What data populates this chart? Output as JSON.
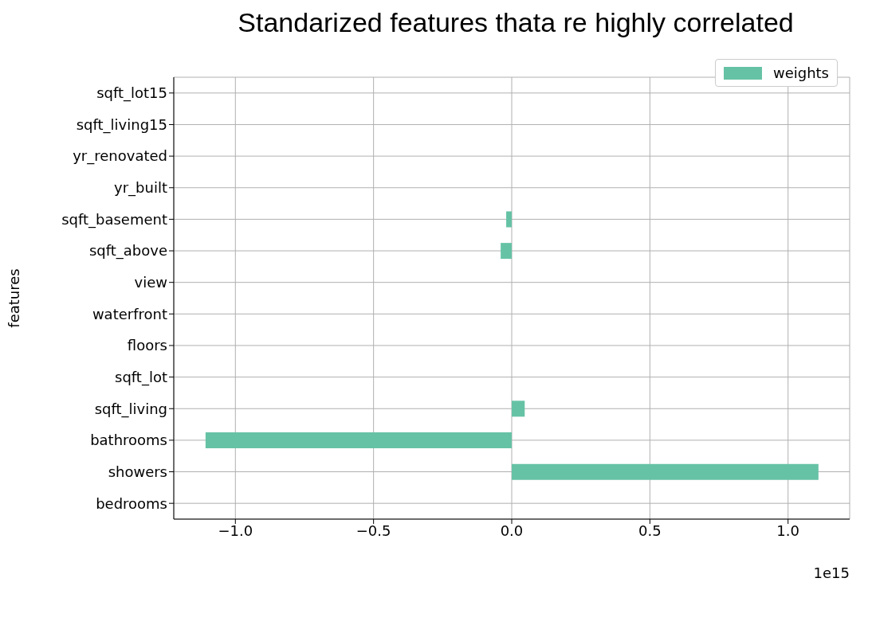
{
  "chart_data": {
    "type": "bar",
    "orientation": "horizontal",
    "title": "Standarized features thata re highly correlated",
    "ylabel": "features",
    "categories": [
      "sqft_lot15",
      "sqft_living15",
      "yr_renovated",
      "yr_built",
      "sqft_basement",
      "sqft_above",
      "view",
      "waterfront",
      "floors",
      "sqft_lot",
      "sqft_living",
      "bathrooms",
      "showers",
      "bedrooms"
    ],
    "series": [
      {
        "name": "weights",
        "color": "#66c2a5",
        "values": [
          0,
          0,
          0,
          0,
          -0.02,
          -0.04,
          0,
          0,
          0,
          0,
          0.047,
          -1.108,
          1.11,
          0
        ]
      }
    ],
    "xlim": [
      -1.223,
      1.223
    ],
    "xticks": [
      {
        "value": -1,
        "label": "−1.0"
      },
      {
        "value": -0.5,
        "label": "−0.5"
      },
      {
        "value": 0,
        "label": "0.0"
      },
      {
        "value": 0.5,
        "label": "0.5"
      },
      {
        "value": 1,
        "label": "1.0"
      }
    ],
    "grid": true,
    "legend": "top right",
    "annotations": [
      "1e15"
    ]
  }
}
